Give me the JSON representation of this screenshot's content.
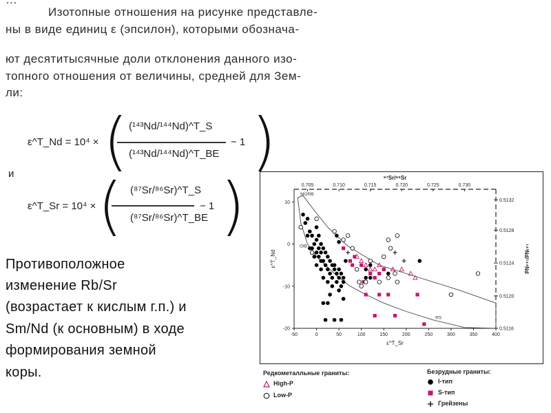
{
  "text": {
    "line0": "…",
    "line1": "Изотопные отношения на рисунке представле-",
    "line2": "ны в виде единиц ε (эпсилон), которыми обознача-",
    "line3": "ют десятитысячные доли отклонения данного изо-",
    "line4": "топного отношения от величины, средней для Зем-",
    "line5": "ли:"
  },
  "equations": {
    "nd": {
      "lhs": "ε^T_Nd = 10⁴ ×",
      "num": "(¹⁴³Nd/¹⁴⁴Nd)^T_S",
      "den": "(¹⁴³Nd/¹⁴⁴Nd)^T_BE",
      "tail": "− 1"
    },
    "and": "и",
    "sr": {
      "lhs": "ε^T_Sr = 10⁴ ×",
      "num": "(⁸⁷Sr/⁸⁶Sr)^T_S",
      "den": "(⁸⁷Sr/⁸⁶Sr)^T_BE",
      "tail": "− 1"
    }
  },
  "statement": {
    "l1": "Противоположное",
    "l2": "изменение Rb/Sr",
    "l3": "(возрастает к кислым г.п.) и",
    "l4": "Sm/Nd (к основным) в ходе",
    "l5": "формирования земной",
    "l6": "коры."
  },
  "legend": {
    "left_title": "Редкометалльные граниты:",
    "high_p": "High-P",
    "low_p": "Low-P",
    "right_title": "Безрудные граниты:",
    "i_type": "I-тип",
    "s_type": "S-тип",
    "greisen": "Грейзены"
  },
  "chart_data": {
    "type": "scatter",
    "xlabel": "ε^T_Sr",
    "ylabel": "ε^T_Nd",
    "top_axis_label": "⁸⁷Sr/⁸⁶Sr",
    "right_axis_label": "¹⁴³Nd/¹⁴⁴Nd",
    "xlim": [
      -50,
      400
    ],
    "ylim": [
      -20,
      13
    ],
    "x_ticks": [
      -50,
      0,
      50,
      100,
      150,
      200,
      250,
      300,
      350,
      400
    ],
    "y_ticks": [
      10,
      0,
      -10,
      -20
    ],
    "top_ticks": [
      {
        "x": -20,
        "label": "0.705"
      },
      {
        "x": 50,
        "label": "0.710"
      },
      {
        "x": 120,
        "label": "0.715"
      },
      {
        "x": 190,
        "label": "0.720"
      },
      {
        "x": 260,
        "label": "0.725"
      },
      {
        "x": 330,
        "label": "0.730"
      }
    ],
    "right_ticks": [
      {
        "y": 10.5,
        "label": "0.5132"
      },
      {
        "y": 3.3,
        "label": "0.5128"
      },
      {
        "y": -4.5,
        "label": "0.5124"
      },
      {
        "y": -12.3,
        "label": "0.5120"
      },
      {
        "y": -20,
        "label": "0.5116"
      }
    ],
    "annotations": [
      {
        "x": -36,
        "y": 11.5,
        "text": "MORB"
      },
      {
        "x": -38,
        "y": -0.8,
        "text": "OIB"
      },
      {
        "x": 265,
        "y": -17.8,
        "text": "RS"
      }
    ],
    "envelope": [
      [
        -42,
        11
      ],
      [
        -30,
        11.5
      ],
      [
        -5,
        8
      ],
      [
        25,
        4
      ],
      [
        70,
        -0.5
      ],
      [
        140,
        -5
      ],
      [
        230,
        -8
      ],
      [
        320,
        -11
      ],
      [
        400,
        -14
      ],
      [
        400,
        -20
      ],
      [
        330,
        -19.8
      ],
      [
        260,
        -18
      ],
      [
        200,
        -16
      ],
      [
        150,
        -14
      ],
      [
        110,
        -12
      ],
      [
        75,
        -10
      ],
      [
        45,
        -7.5
      ],
      [
        20,
        -5
      ],
      [
        0,
        -3
      ],
      [
        -20,
        0
      ],
      [
        -35,
        5
      ],
      [
        -42,
        11
      ]
    ],
    "series": [
      {
        "name": "I-тип",
        "marker": "filled-circle",
        "color": "#000000",
        "points": [
          [
            -30,
            7
          ],
          [
            -25,
            5
          ],
          [
            -20,
            6
          ],
          [
            -15,
            3
          ],
          [
            -10,
            2
          ],
          [
            -5,
            0
          ],
          [
            0,
            1
          ],
          [
            0,
            -2
          ],
          [
            5,
            -1
          ],
          [
            5,
            -3
          ],
          [
            10,
            -2
          ],
          [
            10,
            0
          ],
          [
            15,
            -1
          ],
          [
            15,
            -4
          ],
          [
            20,
            -2
          ],
          [
            20,
            -5
          ],
          [
            25,
            -3
          ],
          [
            25,
            -6
          ],
          [
            30,
            -4
          ],
          [
            30,
            -7
          ],
          [
            35,
            -5
          ],
          [
            35,
            -8
          ],
          [
            40,
            -5
          ],
          [
            40,
            -6
          ],
          [
            45,
            -7
          ],
          [
            45,
            -9
          ],
          [
            50,
            -6
          ],
          [
            50,
            -8
          ],
          [
            55,
            -7
          ],
          [
            55,
            -10
          ],
          [
            60,
            -8
          ],
          [
            60,
            -9
          ],
          [
            -10,
            -1
          ],
          [
            -5,
            -3
          ],
          [
            0,
            4
          ],
          [
            5,
            2
          ],
          [
            10,
            -6
          ],
          [
            15,
            -8
          ],
          [
            30,
            -12
          ],
          [
            15,
            -14
          ],
          [
            25,
            -14
          ],
          [
            20,
            -18
          ],
          [
            40,
            -18
          ],
          [
            65,
            -4
          ],
          [
            110,
            -6
          ],
          [
            110,
            -8
          ],
          [
            120,
            -8
          ],
          [
            120,
            -5
          ],
          [
            150,
            -6
          ],
          [
            160,
            -7
          ],
          [
            230,
            -4
          ],
          [
            50,
            0.5
          ],
          [
            45,
            2
          ],
          [
            -15,
            -1
          ],
          [
            -20,
            2
          ],
          [
            0,
            -5
          ],
          [
            25,
            -9
          ],
          [
            35,
            -10
          ],
          [
            10,
            -4
          ],
          [
            50,
            -11
          ],
          [
            60,
            -13
          ],
          [
            55,
            -18
          ]
        ]
      },
      {
        "name": "S-тип",
        "marker": "filled-square",
        "color": "#c0196f",
        "points": [
          [
            60,
            -1
          ],
          [
            75,
            -4
          ],
          [
            85,
            -3
          ],
          [
            100,
            -5
          ],
          [
            105,
            -9
          ],
          [
            110,
            -12
          ],
          [
            130,
            -8
          ],
          [
            140,
            -7
          ],
          [
            140,
            -12
          ],
          [
            150,
            -6
          ],
          [
            130,
            -17
          ],
          [
            160,
            -12
          ],
          [
            175,
            -17
          ],
          [
            225,
            -12
          ],
          [
            240,
            -19
          ],
          [
            80,
            -5
          ],
          [
            120,
            -7
          ]
        ]
      },
      {
        "name": "High-P",
        "marker": "open-triangle",
        "color": "#c0196f",
        "points": [
          [
            90,
            -3
          ],
          [
            100,
            -4
          ],
          [
            110,
            -5
          ],
          [
            120,
            -6
          ],
          [
            130,
            -6
          ],
          [
            140,
            -5
          ],
          [
            170,
            -6
          ],
          [
            190,
            -6
          ],
          [
            210,
            -7
          ],
          [
            220,
            -8
          ]
        ]
      },
      {
        "name": "Low-P",
        "marker": "open-circle",
        "color": "#000000",
        "points": [
          [
            -35,
            4
          ],
          [
            -10,
            -2
          ],
          [
            0,
            6
          ],
          [
            40,
            3
          ],
          [
            60,
            1
          ],
          [
            70,
            2
          ],
          [
            80,
            -1
          ],
          [
            90,
            -6
          ],
          [
            95,
            -9
          ],
          [
            100,
            -10
          ],
          [
            110,
            -9
          ],
          [
            120,
            -4
          ],
          [
            140,
            -9
          ],
          [
            160,
            -8
          ],
          [
            165,
            -1
          ],
          [
            175,
            -7
          ],
          [
            180,
            -9
          ],
          [
            180,
            2
          ],
          [
            160,
            1
          ],
          [
            300,
            -12
          ],
          [
            360,
            -7
          ],
          [
            150,
            -3
          ]
        ]
      },
      {
        "name": "Грейзены",
        "marker": "plus",
        "color": "#000000",
        "points": [
          [
            195,
            -4
          ],
          [
            175,
            -2
          ],
          [
            70,
            -2
          ]
        ]
      }
    ]
  }
}
